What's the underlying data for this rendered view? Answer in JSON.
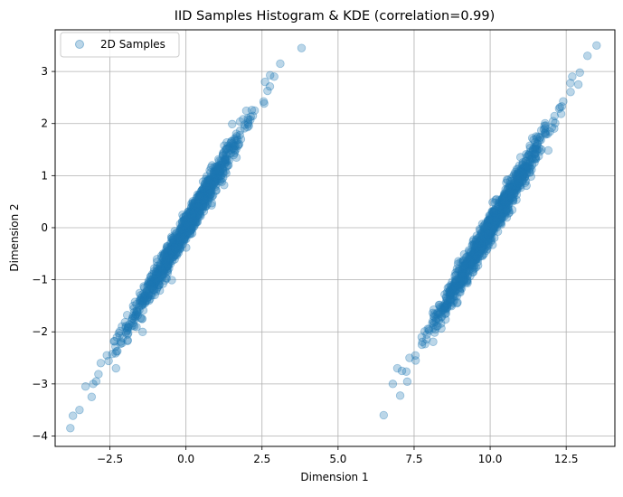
{
  "chart_data": {
    "type": "scatter",
    "title": "IID Samples Histogram & KDE (correlation=0.99)",
    "xlabel": "Dimension 1",
    "ylabel": "Dimension 2",
    "xlim": [
      -4.3,
      14.1
    ],
    "ylim": [
      -4.2,
      3.8
    ],
    "xticks": [
      -2.5,
      0.0,
      2.5,
      5.0,
      7.5,
      10.0,
      12.5
    ],
    "xtick_labels": [
      "−2.5",
      "0.0",
      "2.5",
      "5.0",
      "7.5",
      "10.0",
      "12.5"
    ],
    "yticks": [
      -4,
      -3,
      -2,
      -1,
      0,
      1,
      2,
      3
    ],
    "ytick_labels": [
      "−4",
      "−3",
      "−2",
      "−1",
      "0",
      "1",
      "2",
      "3"
    ],
    "grid": true,
    "legend_position": "top-left",
    "series": [
      {
        "name": "2D Samples",
        "color": "#1f77b4",
        "alpha": 0.3,
        "clusters": [
          {
            "x_mean": 0.0,
            "y_mean": 0.0,
            "x_std": 1.0,
            "y_std": 1.0,
            "correlation": 0.99,
            "n": 1000
          },
          {
            "x_mean": 10.0,
            "y_mean": 0.0,
            "x_std": 1.0,
            "y_std": 1.0,
            "correlation": 0.99,
            "n": 1000
          }
        ],
        "outliers_x": [
          -3.8,
          -3.5,
          -3.3,
          -3.1,
          -3.05,
          -2.95,
          -2.8,
          -2.6,
          -2.3,
          3.8,
          3.1,
          2.9,
          2.6,
          6.5,
          6.8,
          6.95,
          7.1,
          7.35,
          7.55,
          7.75,
          12.9,
          13.2,
          13.5,
          12.7
        ],
        "outliers_y": [
          -3.85,
          -3.5,
          -3.05,
          -3.25,
          -3.0,
          -2.95,
          -2.6,
          -2.45,
          -2.7,
          3.45,
          3.15,
          2.9,
          2.8,
          -3.6,
          -3.0,
          -2.7,
          -2.75,
          -2.5,
          -2.55,
          -2.1,
          2.75,
          3.3,
          3.5,
          2.9
        ]
      }
    ]
  }
}
